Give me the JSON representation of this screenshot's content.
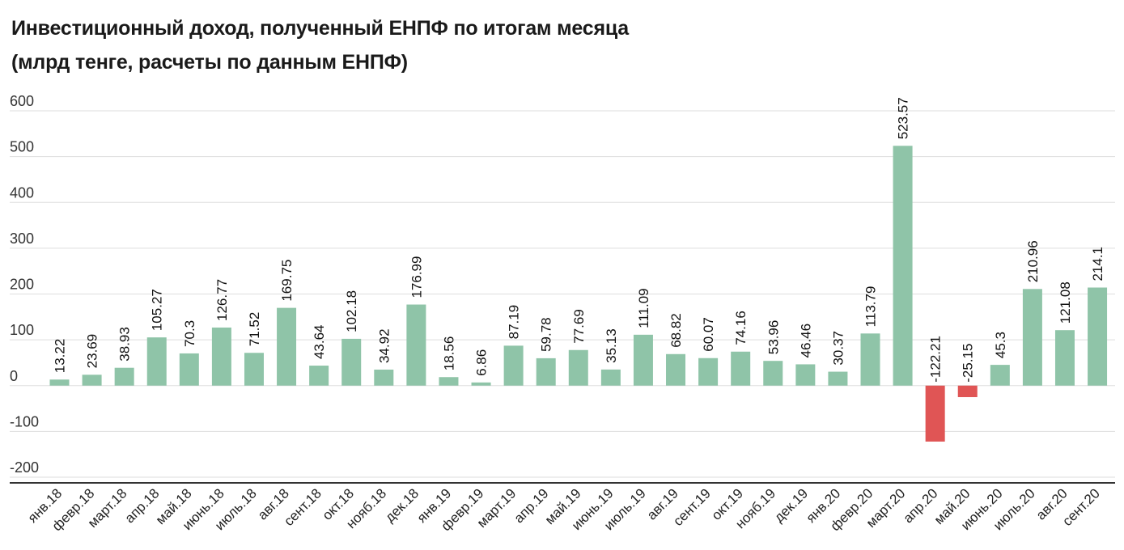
{
  "chart_data": {
    "type": "bar",
    "title": "Инвестиционный доход, полученный ЕНПФ по итогам месяца",
    "subtitle": "(млрд тенге, расчеты по данным ЕНПФ)",
    "xlabel": "",
    "ylabel": "",
    "ylim": [
      -200,
      600
    ],
    "yticks": [
      600,
      500,
      400,
      300,
      200,
      100,
      0,
      -100,
      -200
    ],
    "grid": true,
    "colors": {
      "positive": "#8fc4a8",
      "negative": "#e05555"
    },
    "categories": [
      "янв.18",
      "февр.18",
      "март.18",
      "апр.18",
      "май.18",
      "июнь.18",
      "июль.18",
      "авг.18",
      "сент.18",
      "окт.18",
      "нояб.18",
      "дек.18",
      "янв.19",
      "февр.19",
      "март.19",
      "апр.19",
      "май.19",
      "июнь.19",
      "июль.19",
      "авг.19",
      "сент.19",
      "окт.19",
      "нояб.19",
      "дек.19",
      "янв.20",
      "февр.20",
      "март.20",
      "апр.20",
      "май.20",
      "июнь.20",
      "июль.20",
      "авг.20",
      "сент.20"
    ],
    "values": [
      13.22,
      23.69,
      38.93,
      105.27,
      70.3,
      126.77,
      71.52,
      169.75,
      43.64,
      102.18,
      34.92,
      176.99,
      18.56,
      6.86,
      87.19,
      59.78,
      77.69,
      35.13,
      111.09,
      68.82,
      60.07,
      74.16,
      53.96,
      46.46,
      30.37,
      113.79,
      523.57,
      -122.21,
      -25.15,
      45.3,
      210.96,
      121.08,
      214.1
    ],
    "labels": [
      "13.22",
      "23.69",
      "38.93",
      "105.27",
      "70.3",
      "126.77",
      "71.52",
      "169.75",
      "43.64",
      "102.18",
      "34.92",
      "176.99",
      "18.56",
      "6.86",
      "87.19",
      "59.78",
      "77.69",
      "35.13",
      "111.09",
      "68.82",
      "60.07",
      "74.16",
      "53.96",
      "46.46",
      "30.37",
      "113.79",
      "523.57",
      "-122.21",
      "-25.15",
      "45.3",
      "210.96",
      "121.08",
      "214.1"
    ]
  }
}
